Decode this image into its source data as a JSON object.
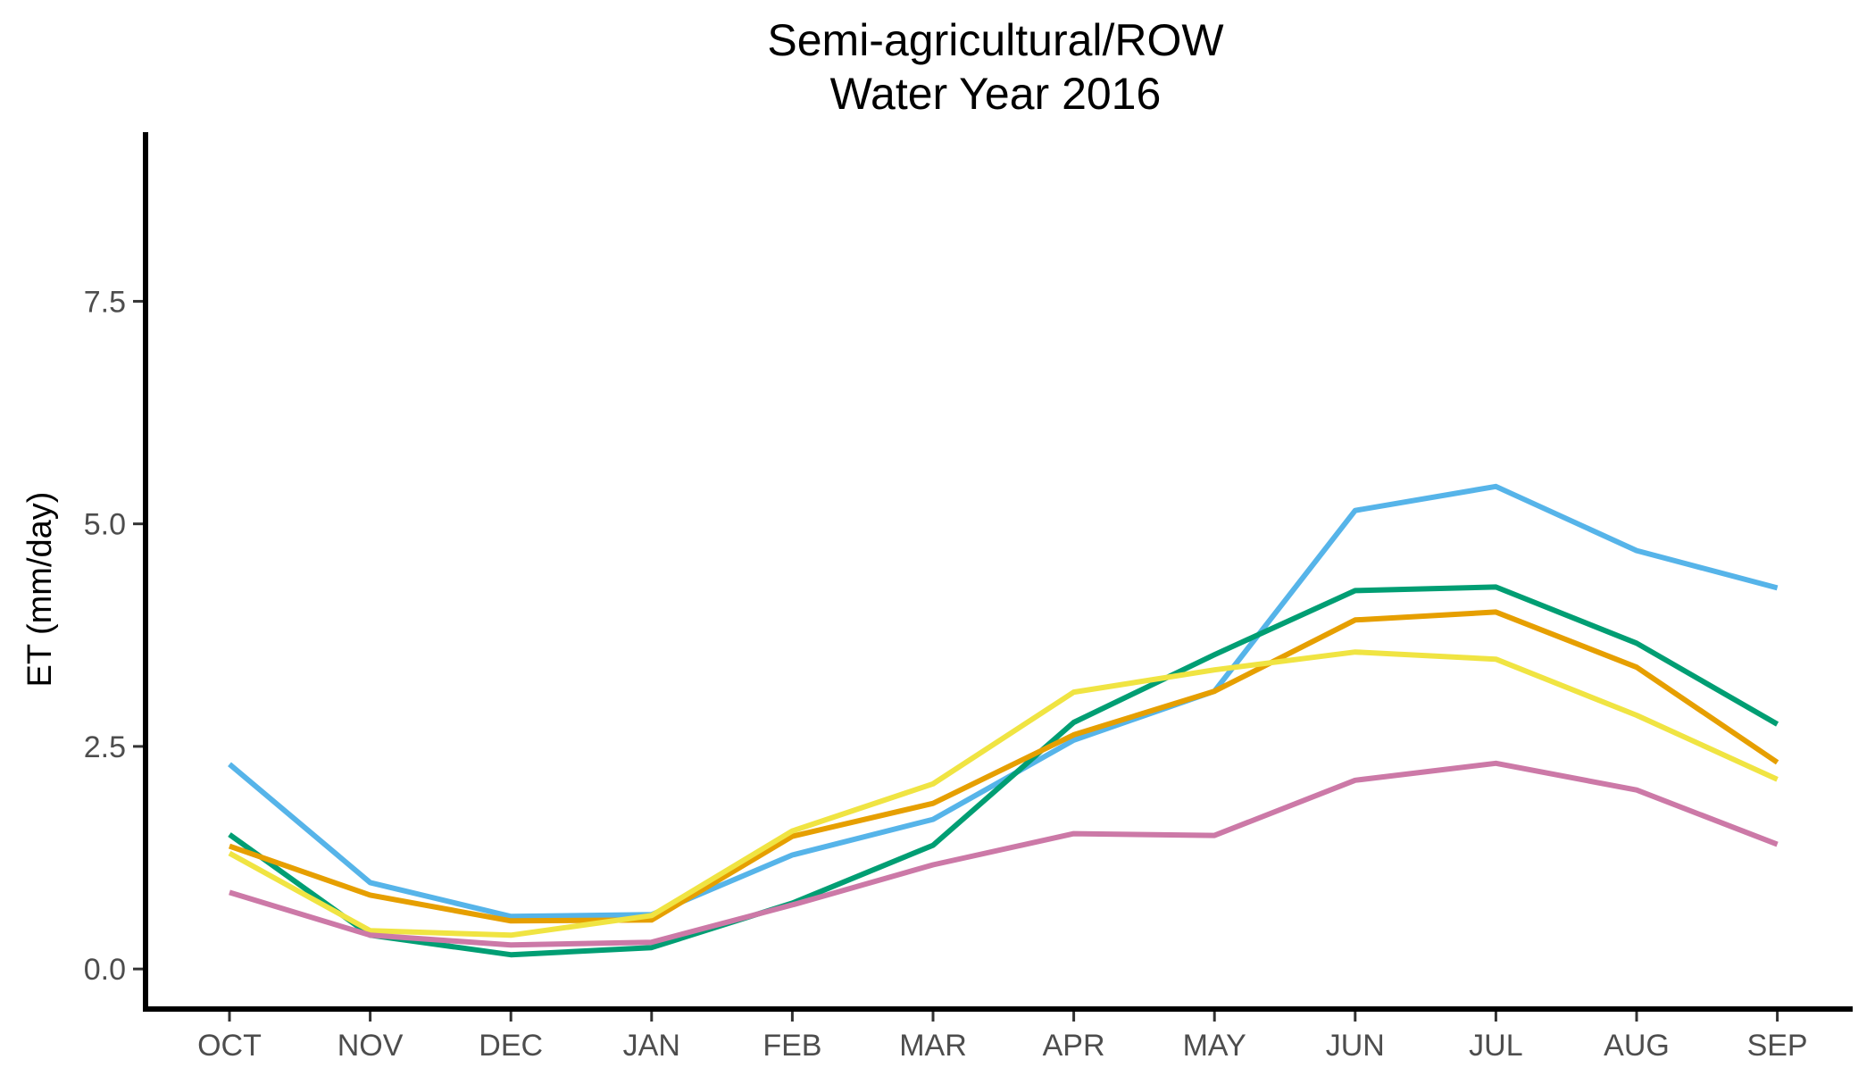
{
  "chart_data": {
    "type": "line",
    "title": "Semi-agricultural/ROW",
    "subtitle": "Water Year 2016",
    "xlabel": "",
    "ylabel": "ET (mm/day)",
    "categories": [
      "OCT",
      "NOV",
      "DEC",
      "JAN",
      "FEB",
      "MAR",
      "APR",
      "MAY",
      "JUN",
      "JUL",
      "AUG",
      "SEP"
    ],
    "ylim": [
      -0.45,
      9.4
    ],
    "yticks": [
      0.0,
      2.5,
      5.0,
      7.5
    ],
    "ytick_labels": [
      "0.0",
      "2.5",
      "5.0",
      "7.5"
    ],
    "grid": false,
    "legend": "none",
    "series": [
      {
        "color": "#56B4E9",
        "values": [
          2.3,
          0.97,
          0.59,
          0.61,
          1.28,
          1.68,
          2.57,
          3.12,
          5.15,
          5.42,
          4.7,
          4.28
        ]
      },
      {
        "color": "#009E73",
        "values": [
          1.51,
          0.38,
          0.16,
          0.24,
          0.74,
          1.39,
          2.77,
          3.53,
          4.25,
          4.29,
          3.66,
          2.75
        ]
      },
      {
        "color": "#E69F00",
        "values": [
          1.38,
          0.83,
          0.54,
          0.55,
          1.49,
          1.86,
          2.63,
          3.12,
          3.92,
          4.01,
          3.39,
          2.32
        ]
      },
      {
        "color": "#F0E442",
        "values": [
          1.3,
          0.43,
          0.38,
          0.6,
          1.55,
          2.08,
          3.11,
          3.36,
          3.56,
          3.48,
          2.85,
          2.13
        ]
      },
      {
        "color": "#CC79A7",
        "values": [
          0.86,
          0.38,
          0.27,
          0.3,
          0.72,
          1.17,
          1.52,
          1.5,
          2.12,
          2.31,
          2.01,
          1.4
        ]
      }
    ]
  }
}
